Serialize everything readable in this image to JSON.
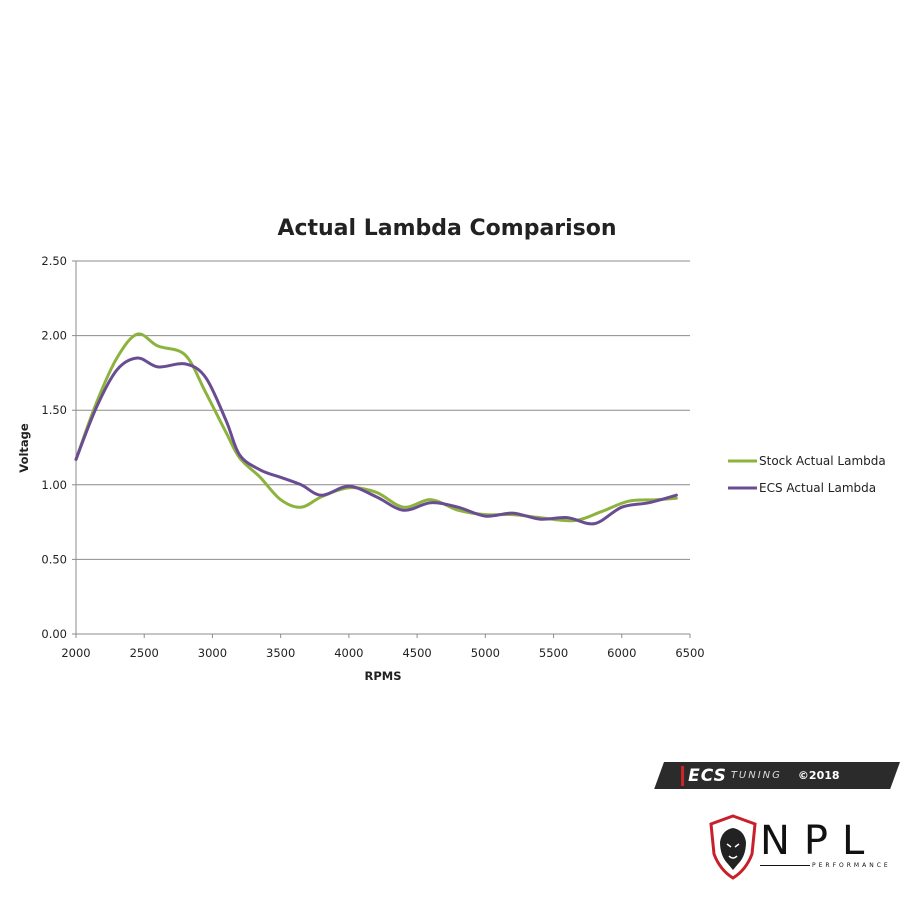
{
  "chart_data": {
    "type": "line",
    "title": "Actual Lambda Comparison",
    "xlabel": "RPMS",
    "ylabel": "Voltage",
    "xlim": [
      2000,
      6500
    ],
    "ylim": [
      0,
      2.5
    ],
    "x_ticks": [
      "2000",
      "2500",
      "3000",
      "3500",
      "4000",
      "4500",
      "5000",
      "5500",
      "6000",
      "6500"
    ],
    "y_ticks": [
      "0.00",
      "0.50",
      "1.00",
      "1.50",
      "2.00",
      "2.50"
    ],
    "grid": "horizontal",
    "legend_position": "right",
    "series": [
      {
        "name": "Stock Actual Lambda",
        "color": "#8db33f",
        "x": [
          2000,
          2150,
          2300,
          2450,
          2600,
          2800,
          2950,
          3100,
          3200,
          3350,
          3500,
          3650,
          3800,
          4000,
          4200,
          4400,
          4600,
          4800,
          5000,
          5200,
          5400,
          5650,
          5850,
          6050,
          6250,
          6400
        ],
        "y": [
          1.17,
          1.55,
          1.85,
          2.01,
          1.93,
          1.87,
          1.62,
          1.35,
          1.18,
          1.05,
          0.9,
          0.85,
          0.92,
          0.98,
          0.95,
          0.85,
          0.9,
          0.83,
          0.8,
          0.8,
          0.78,
          0.76,
          0.82,
          0.89,
          0.9,
          0.91
        ]
      },
      {
        "name": "ECS Actual Lambda",
        "color": "#6a4c93",
        "x": [
          2000,
          2150,
          2300,
          2450,
          2600,
          2800,
          2950,
          3100,
          3200,
          3350,
          3500,
          3650,
          3800,
          4000,
          4200,
          4400,
          4600,
          4800,
          5000,
          5200,
          5400,
          5600,
          5800,
          6000,
          6200,
          6400
        ],
        "y": [
          1.17,
          1.52,
          1.77,
          1.85,
          1.79,
          1.81,
          1.72,
          1.43,
          1.2,
          1.1,
          1.05,
          1.0,
          0.93,
          0.99,
          0.92,
          0.83,
          0.88,
          0.85,
          0.79,
          0.81,
          0.77,
          0.78,
          0.74,
          0.85,
          0.88,
          0.93
        ]
      }
    ]
  },
  "branding": {
    "ecs_letters": "ECS",
    "ecs_tuning": "TUNING",
    "ecs_copyright": "©2018",
    "npl_name": "NPL",
    "npl_sub": "PERFORMANCE"
  }
}
